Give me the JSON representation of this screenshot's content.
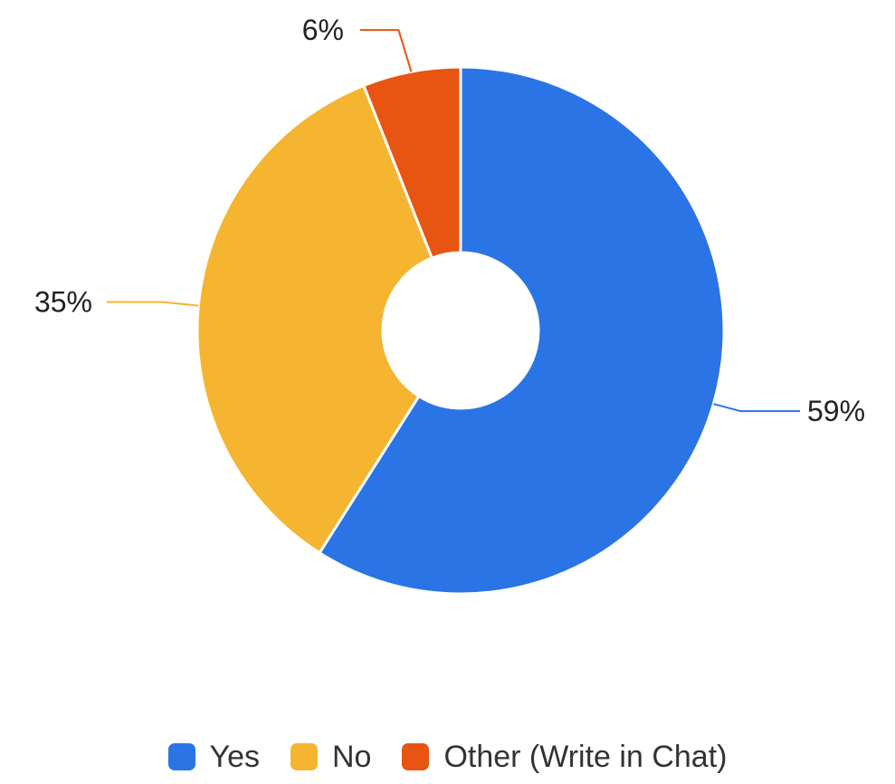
{
  "chart_data": {
    "type": "pie",
    "donut": true,
    "categories": [
      "Yes",
      "No",
      "Other (Write in Chat)"
    ],
    "values": [
      59,
      35,
      6
    ],
    "labels": [
      "59%",
      "35%",
      "6%"
    ],
    "colors": [
      "#2a74e6",
      "#f5b531",
      "#e85412"
    ],
    "legend": "bottom"
  }
}
